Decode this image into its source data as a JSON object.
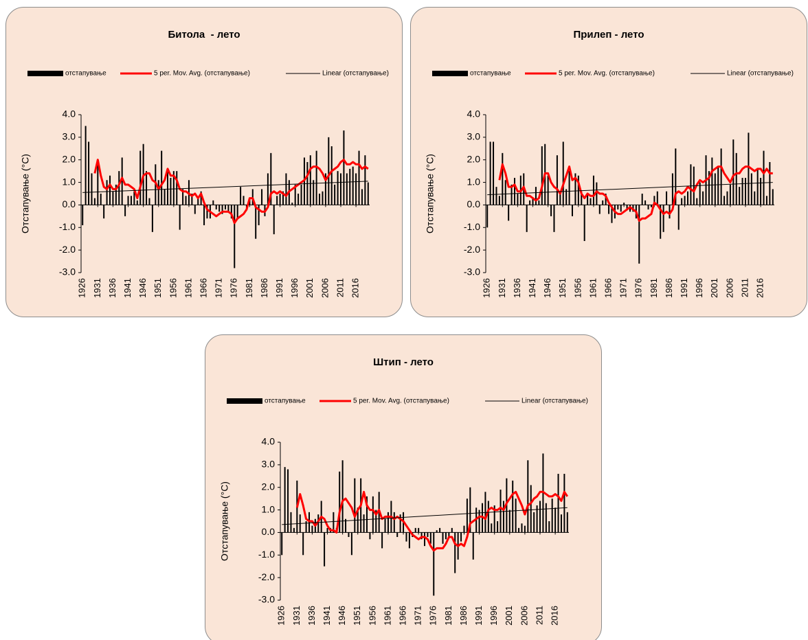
{
  "chart_data": [
    {
      "type": "bar",
      "title": "Битола  - лето",
      "y_label": "Отстапување (°C)",
      "x": [
        1926,
        1927,
        1928,
        1929,
        1930,
        1931,
        1932,
        1933,
        1934,
        1935,
        1936,
        1937,
        1938,
        1939,
        1940,
        1941,
        1942,
        1943,
        1944,
        1945,
        1946,
        1947,
        1948,
        1949,
        1950,
        1951,
        1952,
        1953,
        1954,
        1955,
        1956,
        1957,
        1958,
        1959,
        1960,
        1961,
        1962,
        1963,
        1964,
        1965,
        1966,
        1967,
        1968,
        1969,
        1970,
        1971,
        1972,
        1973,
        1974,
        1975,
        1976,
        1977,
        1978,
        1979,
        1980,
        1981,
        1982,
        1983,
        1984,
        1985,
        1986,
        1987,
        1988,
        1989,
        1990,
        1991,
        1992,
        1993,
        1994,
        1995,
        1996,
        1997,
        1998,
        1999,
        2000,
        2001,
        2002,
        2003,
        2004,
        2005,
        2006,
        2007,
        2008,
        2009,
        2010,
        2011,
        2012,
        2013,
        2014,
        2015,
        2016,
        2017,
        2018,
        2019,
        2020
      ],
      "xlim": [
        1925.5,
        2020.5
      ],
      "xticks": [
        1926,
        1931,
        1936,
        1941,
        1946,
        1951,
        1956,
        1961,
        1966,
        1971,
        1976,
        1981,
        1986,
        1991,
        1996,
        2001,
        2006,
        2011,
        2016
      ],
      "ylim": [
        -3,
        4
      ],
      "yticks": [
        {
          "value": -3,
          "label": "-3.0"
        },
        {
          "value": -2,
          "label": "-2.0"
        },
        {
          "value": -1,
          "label": "-1.0"
        },
        {
          "value": 0,
          "label": "0.0"
        },
        {
          "value": 1,
          "label": "1.0"
        },
        {
          "value": 2,
          "label": "2.0"
        },
        {
          "value": 3,
          "label": "3.0"
        },
        {
          "value": 4,
          "label": "4.0"
        }
      ],
      "series": [
        {
          "name": "отстапување",
          "color": "#000000",
          "values": [
            -0.9,
            3.5,
            2.8,
            1.4,
            0.3,
            1.8,
            0.5,
            -0.6,
            1.1,
            1.3,
            0.6,
            0.9,
            1.5,
            2.1,
            -0.5,
            0.4,
            0.4,
            0.6,
            0.2,
            2.4,
            2.7,
            1.5,
            0.3,
            -1.2,
            1.8,
            1.1,
            2.4,
            0.7,
            1.6,
            1.2,
            1.5,
            1.5,
            -1.1,
            0.7,
            0.4,
            1.1,
            0.5,
            -0.4,
            0.3,
            0.6,
            -0.9,
            -0.6,
            -0.6,
            0.2,
            -0.2,
            -0.3,
            -0.4,
            -0.2,
            -0.3,
            -0.6,
            -2.8,
            -0.6,
            0.8,
            0.4,
            -0.2,
            0.3,
            0.7,
            -1.5,
            -0.9,
            0.7,
            -0.5,
            1.4,
            2.3,
            -1.3,
            0.4,
            0.5,
            0.6,
            1.4,
            1.1,
            0.1,
            0.9,
            0.5,
            0.9,
            2.1,
            1.9,
            2.2,
            1.1,
            2.4,
            0.5,
            0.6,
            1.4,
            3.0,
            2.6,
            0.9,
            1.5,
            1.4,
            3.3,
            1.4,
            1.6,
            1.7,
            1.4,
            2.4,
            0.7,
            2.2,
            1.0
          ]
        },
        {
          "name": "5 per. Mov. Avg. (отстапување)",
          "color": "#ff0000",
          "type": "line",
          "values": [
            null,
            null,
            null,
            null,
            1.4,
            2.0,
            1.3,
            0.8,
            0.7,
            0.9,
            0.7,
            0.7,
            0.9,
            1.2,
            0.9,
            0.9,
            0.8,
            0.7,
            0.3,
            0.8,
            1.3,
            1.4,
            1.4,
            1.1,
            1.0,
            0.7,
            0.9,
            1.1,
            1.6,
            1.3,
            1.3,
            1.1,
            0.7,
            0.6,
            0.6,
            0.5,
            0.4,
            0.5,
            0.3,
            0.5,
            0.1,
            -0.2,
            -0.3,
            -0.4,
            -0.5,
            -0.4,
            -0.3,
            -0.3,
            -0.3,
            -0.4,
            -0.8,
            -0.6,
            -0.5,
            -0.4,
            -0.2,
            0.3,
            0.3,
            -0.1,
            -0.2,
            -0.3,
            -0.3,
            -0.1,
            0.5,
            0.6,
            0.5,
            0.6,
            0.5,
            0.4,
            0.6,
            0.7,
            0.8,
            0.9,
            1.0,
            1.1,
            1.3,
            1.6,
            1.7,
            1.7,
            1.6,
            1.4,
            1.1,
            1.3,
            1.5,
            1.6,
            1.7,
            1.9,
            2.0,
            1.8,
            1.8,
            1.9,
            1.8,
            1.8,
            1.6,
            1.7,
            1.6
          ]
        },
        {
          "name": "Linear (отстапување)",
          "color": "#000000",
          "type": "trend",
          "x": [
            1926,
            2020
          ],
          "values": [
            0.55,
            1.05
          ]
        }
      ]
    },
    {
      "type": "bar",
      "title": "Прилеп - лето",
      "y_label": "Отстапување (°C)",
      "x": [
        1926,
        1927,
        1928,
        1929,
        1930,
        1931,
        1932,
        1933,
        1934,
        1935,
        1936,
        1937,
        1938,
        1939,
        1940,
        1941,
        1942,
        1943,
        1944,
        1945,
        1946,
        1947,
        1948,
        1949,
        1950,
        1951,
        1952,
        1953,
        1954,
        1955,
        1956,
        1957,
        1958,
        1959,
        1960,
        1961,
        1962,
        1963,
        1964,
        1965,
        1966,
        1967,
        1968,
        1969,
        1970,
        1971,
        1972,
        1973,
        1974,
        1975,
        1976,
        1977,
        1978,
        1979,
        1980,
        1981,
        1982,
        1983,
        1984,
        1985,
        1986,
        1987,
        1988,
        1989,
        1990,
        1991,
        1992,
        1993,
        1994,
        1995,
        1996,
        1997,
        1998,
        1999,
        2000,
        2001,
        2002,
        2003,
        2004,
        2005,
        2006,
        2007,
        2008,
        2009,
        2010,
        2011,
        2012,
        2013,
        2014,
        2015,
        2016,
        2017,
        2018,
        2019,
        2020
      ],
      "xlim": [
        1925.5,
        2020.5
      ],
      "xticks": [
        1926,
        1931,
        1936,
        1941,
        1946,
        1951,
        1956,
        1961,
        1966,
        1971,
        1976,
        1981,
        1986,
        1991,
        1996,
        2001,
        2006,
        2011,
        2016
      ],
      "ylim": [
        -3,
        4
      ],
      "yticks": [
        {
          "value": -3,
          "label": "-3.0"
        },
        {
          "value": -2,
          "label": "-2.0"
        },
        {
          "value": -1,
          "label": "-1.0"
        },
        {
          "value": 0,
          "label": "0.0"
        },
        {
          "value": 1,
          "label": "1.0"
        },
        {
          "value": 2,
          "label": "2.0"
        },
        {
          "value": 3,
          "label": "3.0"
        },
        {
          "value": 4,
          "label": "4.0"
        }
      ],
      "series": [
        {
          "name": "отстапување",
          "color": "#000000",
          "values": [
            -1.0,
            2.8,
            2.8,
            0.8,
            0.4,
            2.3,
            1.1,
            -0.7,
            0.9,
            1.2,
            0.5,
            1.3,
            1.4,
            -1.2,
            0.2,
            0.3,
            0.8,
            0.2,
            2.6,
            2.7,
            1.3,
            -0.5,
            -1.2,
            2.2,
            0.6,
            2.8,
            0.7,
            1.5,
            -0.5,
            1.4,
            1.3,
            0.6,
            -1.6,
            0.5,
            0.3,
            1.3,
            1.0,
            -0.4,
            0.2,
            0.5,
            -0.4,
            -0.8,
            -0.6,
            -0.2,
            -0.3,
            0.1,
            -0.2,
            -0.3,
            -0.3,
            -0.6,
            -2.6,
            0.5,
            0.2,
            -0.2,
            -0.1,
            0.4,
            0.6,
            -1.5,
            -1.2,
            0.6,
            -0.6,
            1.4,
            2.5,
            -1.1,
            0.3,
            0.4,
            0.6,
            1.8,
            1.7,
            0.3,
            1.0,
            0.6,
            2.2,
            1.5,
            2.1,
            1.4,
            1.7,
            2.5,
            0.4,
            0.6,
            0.9,
            2.9,
            2.3,
            0.8,
            1.2,
            1.2,
            3.2,
            1.4,
            0.6,
            1.6,
            1.2,
            2.4,
            0.4,
            1.9,
            0.7
          ]
        },
        {
          "name": "5 per. Mov. Avg. (отстапување)",
          "color": "#ff0000",
          "type": "line",
          "values": [
            null,
            null,
            null,
            null,
            1.1,
            1.8,
            1.4,
            0.8,
            0.8,
            0.9,
            0.6,
            0.6,
            0.8,
            0.4,
            0.4,
            0.3,
            0.2,
            0.3,
            0.8,
            1.4,
            1.4,
            1.0,
            0.8,
            0.7,
            0.5,
            0.9,
            1.3,
            1.7,
            1.1,
            1.2,
            1.0,
            0.5,
            0.3,
            0.5,
            0.4,
            0.4,
            0.6,
            0.5,
            0.5,
            0.4,
            0.1,
            -0.1,
            -0.3,
            -0.4,
            -0.4,
            -0.3,
            -0.2,
            -0.1,
            -0.2,
            -0.3,
            -0.7,
            -0.6,
            -0.6,
            -0.5,
            -0.4,
            0.1,
            0.0,
            -0.2,
            -0.4,
            -0.3,
            -0.4,
            -0.2,
            0.5,
            0.6,
            0.5,
            0.6,
            0.8,
            0.7,
            0.6,
            0.9,
            1.1,
            1.0,
            1.1,
            1.2,
            1.5,
            1.6,
            1.7,
            1.7,
            1.4,
            1.2,
            1.0,
            1.3,
            1.4,
            1.4,
            1.6,
            1.7,
            1.7,
            1.6,
            1.5,
            1.6,
            1.6,
            1.4,
            1.6,
            1.4,
            1.4
          ]
        },
        {
          "name": "Linear (отстапување)",
          "color": "#000000",
          "type": "trend",
          "x": [
            1926,
            2020
          ],
          "values": [
            0.45,
            1.0
          ]
        }
      ]
    },
    {
      "type": "bar",
      "title": "Штип - лето",
      "y_label": "Отстапување (°C)",
      "x": [
        1926,
        1927,
        1928,
        1929,
        1930,
        1931,
        1932,
        1933,
        1934,
        1935,
        1936,
        1937,
        1938,
        1939,
        1940,
        1941,
        1942,
        1943,
        1944,
        1945,
        1946,
        1947,
        1948,
        1949,
        1950,
        1951,
        1952,
        1953,
        1954,
        1955,
        1956,
        1957,
        1958,
        1959,
        1960,
        1961,
        1962,
        1963,
        1964,
        1965,
        1966,
        1967,
        1968,
        1969,
        1970,
        1971,
        1972,
        1973,
        1974,
        1975,
        1976,
        1977,
        1978,
        1979,
        1980,
        1981,
        1982,
        1983,
        1984,
        1985,
        1986,
        1987,
        1988,
        1989,
        1990,
        1991,
        1992,
        1993,
        1994,
        1995,
        1996,
        1997,
        1998,
        1999,
        2000,
        2001,
        2002,
        2003,
        2004,
        2005,
        2006,
        2007,
        2008,
        2009,
        2010,
        2011,
        2012,
        2013,
        2014,
        2015,
        2016,
        2017,
        2018,
        2019,
        2020
      ],
      "xlim": [
        1925.5,
        2020.5
      ],
      "xticks": [
        1926,
        1931,
        1936,
        1941,
        1946,
        1951,
        1956,
        1961,
        1966,
        1971,
        1976,
        1981,
        1986,
        1991,
        1996,
        2001,
        2006,
        2011,
        2016
      ],
      "ylim": [
        -3,
        4
      ],
      "yticks": [
        {
          "value": -3,
          "label": "-3.0"
        },
        {
          "value": -2,
          "label": "-2.0"
        },
        {
          "value": -1,
          "label": "-1.0"
        },
        {
          "value": 0,
          "label": "0.0"
        },
        {
          "value": 1,
          "label": "1.0"
        },
        {
          "value": 2,
          "label": "2.0"
        },
        {
          "value": 3,
          "label": "3.0"
        },
        {
          "value": 4,
          "label": "4.0"
        }
      ],
      "series": [
        {
          "name": "отстапување",
          "color": "#000000",
          "values": [
            -1.0,
            2.9,
            2.8,
            0.9,
            0.2,
            2.3,
            0.8,
            -1.0,
            0.5,
            0.9,
            0.3,
            0.6,
            0.8,
            1.4,
            -1.5,
            0.2,
            0.2,
            0.9,
            0.2,
            2.7,
            3.2,
            0.6,
            -0.2,
            -1.0,
            2.4,
            1.1,
            2.4,
            0.8,
            1.6,
            -0.3,
            1.6,
            1.0,
            1.8,
            -0.7,
            0.6,
            0.9,
            1.4,
            0.9,
            -0.2,
            0.8,
            0.9,
            -0.4,
            -0.7,
            -0.2,
            0.2,
            0.2,
            -0.3,
            -0.6,
            -0.2,
            -0.5,
            -2.8,
            0.1,
            0.2,
            -0.5,
            -0.3,
            -0.2,
            0.2,
            -1.8,
            -1.2,
            -0.4,
            0.3,
            1.5,
            2.0,
            -1.2,
            1.1,
            1.0,
            1.3,
            1.8,
            1.4,
            0.4,
            1.2,
            0.5,
            1.9,
            1.4,
            2.4,
            1.0,
            2.3,
            1.5,
            0.2,
            0.4,
            0.3,
            3.2,
            2.1,
            0.9,
            1.2,
            1.4,
            3.5,
            1.3,
            0.5,
            1.5,
            1.1,
            2.6,
            0.8,
            2.6,
            0.9
          ]
        },
        {
          "name": "5 per. Mov. Avg. (отстапување)",
          "color": "#ff0000",
          "type": "line",
          "values": [
            null,
            null,
            null,
            null,
            null,
            1.1,
            1.7,
            1.2,
            0.6,
            0.5,
            0.5,
            0.3,
            0.5,
            0.7,
            0.6,
            0.3,
            0.1,
            0.1,
            0.0,
            0.9,
            1.4,
            1.5,
            1.3,
            1.1,
            0.7,
            1.0,
            1.2,
            1.8,
            1.2,
            1.0,
            1.0,
            0.8,
            1.0,
            0.6,
            0.7,
            0.7,
            0.7,
            0.6,
            0.7,
            0.6,
            0.5,
            0.3,
            0.1,
            -0.1,
            -0.2,
            -0.3,
            -0.2,
            -0.2,
            -0.3,
            -0.6,
            -0.8,
            -0.7,
            -0.7,
            -0.7,
            -0.5,
            -0.2,
            -0.2,
            -0.5,
            -0.6,
            -0.5,
            -0.6,
            -0.2,
            0.4,
            0.5,
            0.6,
            0.7,
            0.7,
            0.6,
            1.0,
            1.1,
            1.0,
            1.0,
            1.1,
            1.0,
            1.3,
            1.5,
            1.7,
            1.8,
            1.5,
            1.2,
            0.8,
            1.2,
            1.3,
            1.5,
            1.6,
            1.8,
            1.8,
            1.7,
            1.6,
            1.6,
            1.7,
            1.6,
            1.4,
            1.8,
            1.6
          ]
        },
        {
          "name": "Linear (отстапување)",
          "color": "#000000",
          "type": "trend",
          "x": [
            1926,
            2020
          ],
          "values": [
            0.35,
            1.1
          ]
        }
      ]
    }
  ]
}
